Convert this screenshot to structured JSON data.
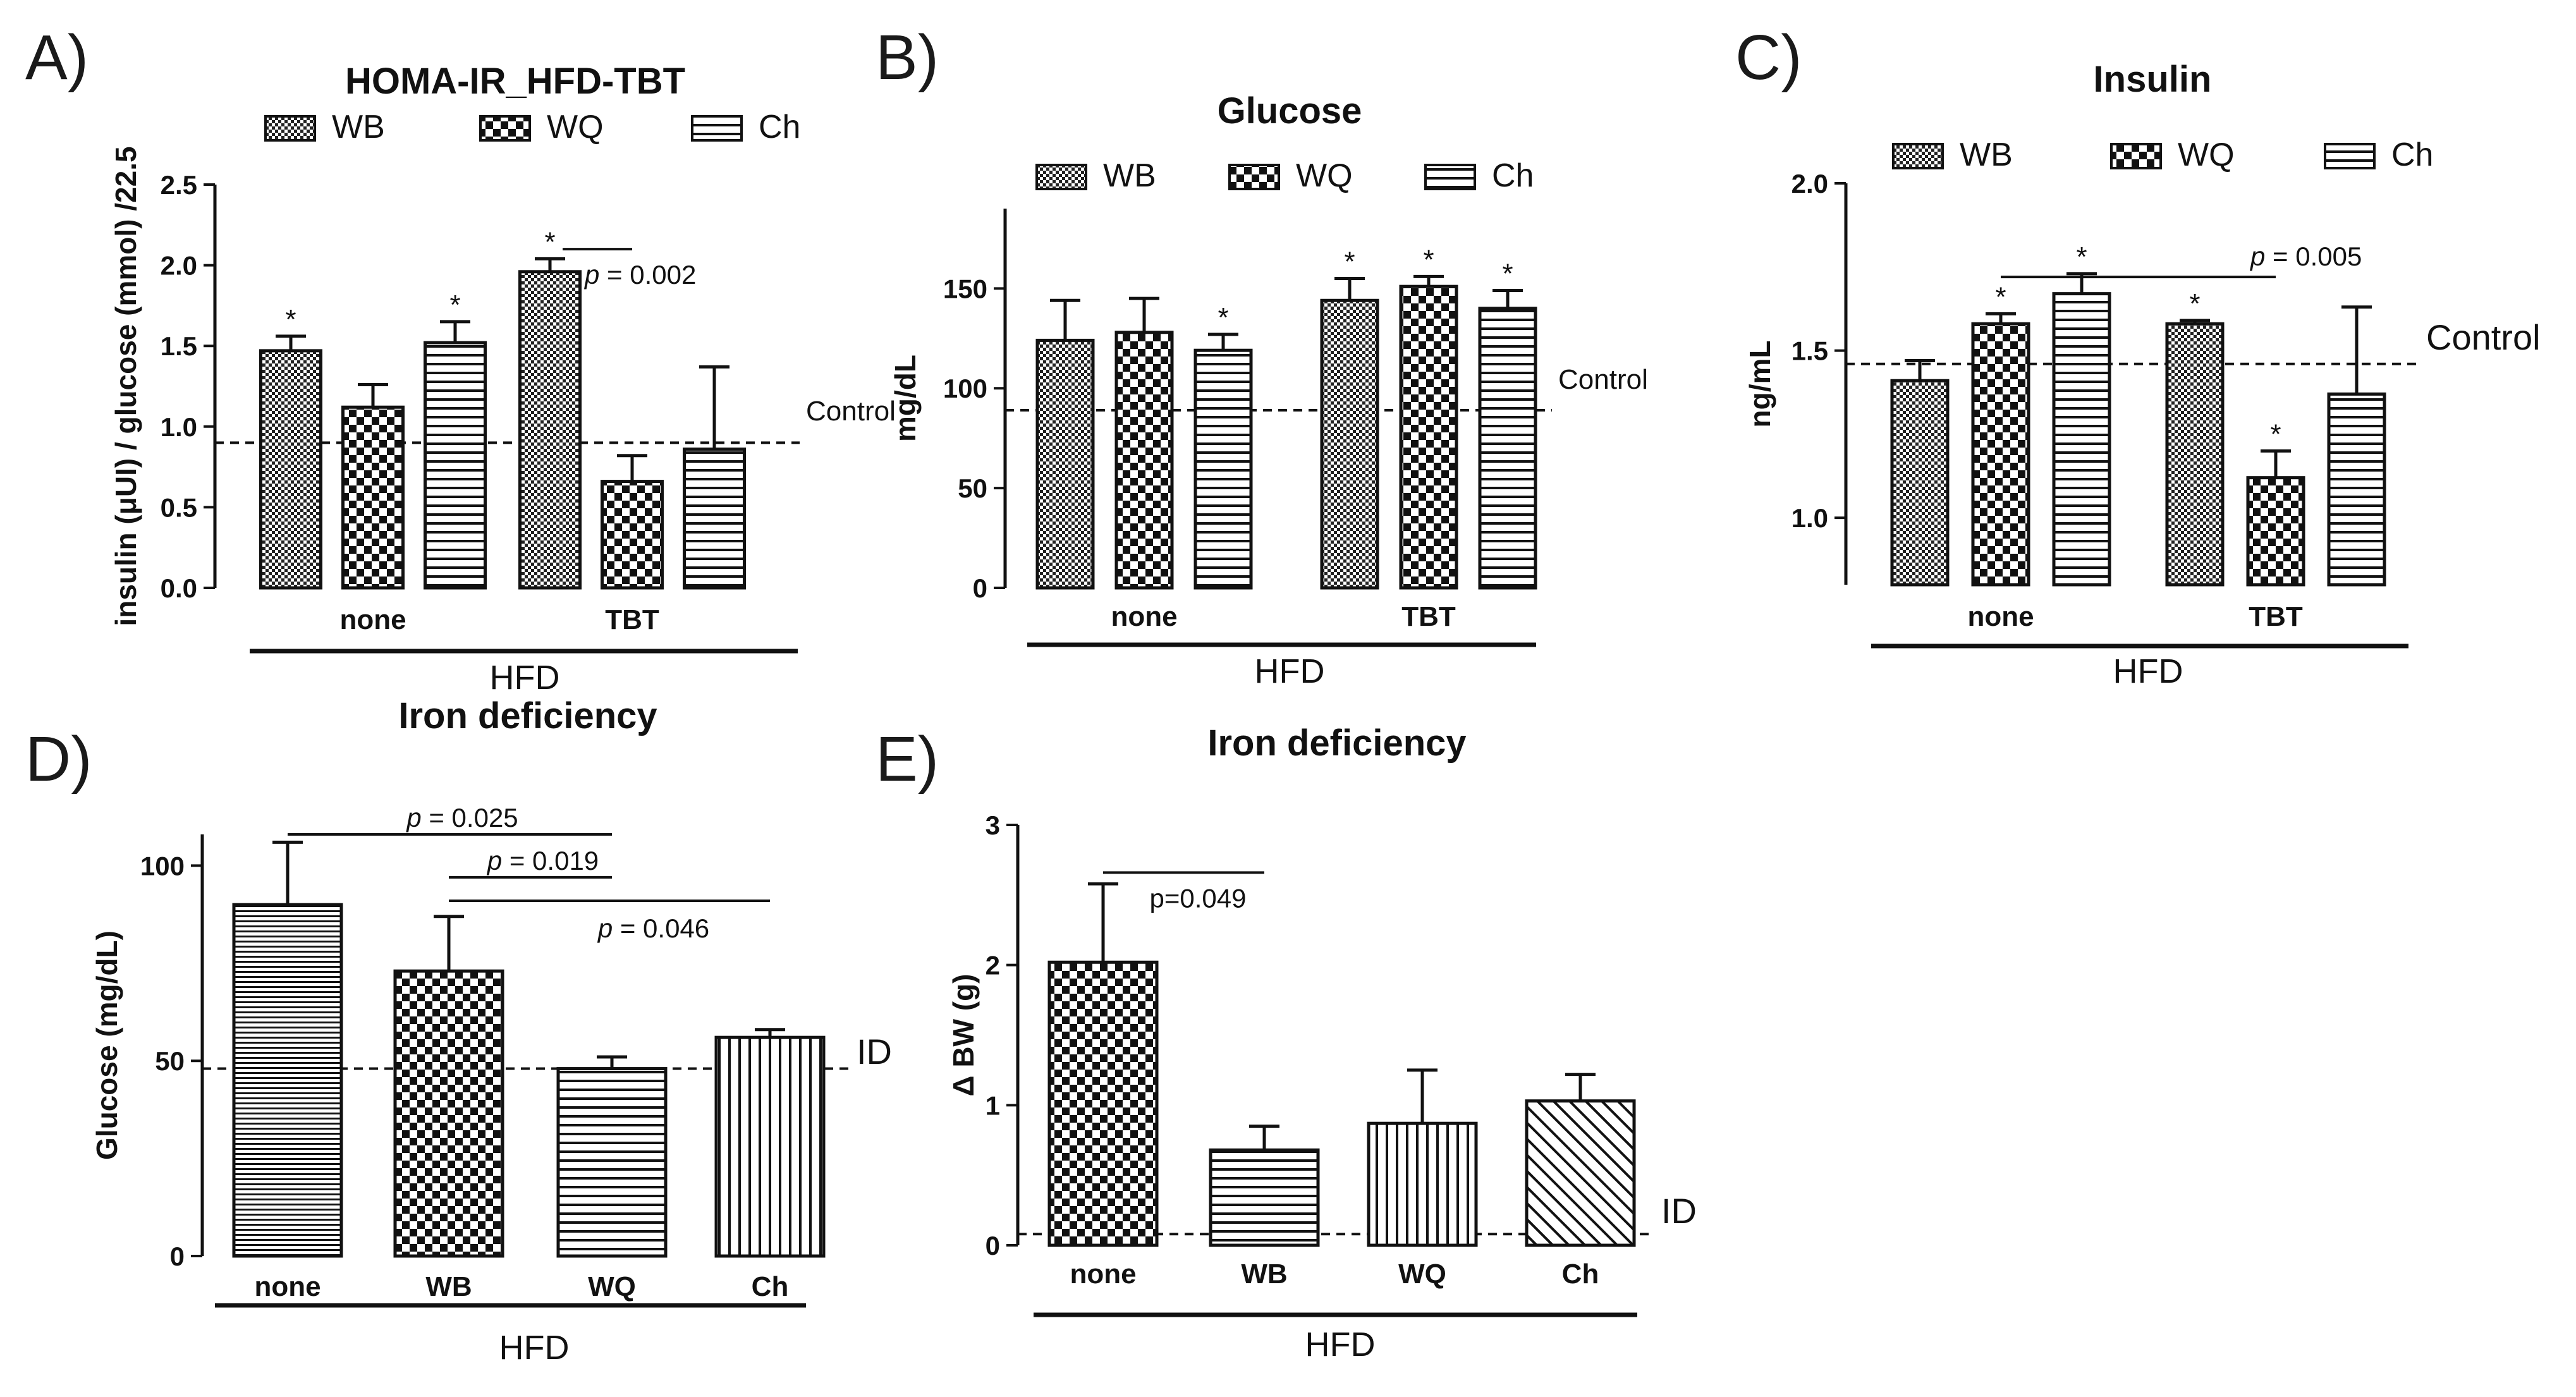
{
  "figure": {
    "panels": [
      "A)",
      "B)",
      "C)",
      "D)",
      "E)"
    ]
  },
  "colors": {
    "ink": "#111111",
    "bar_fill_light": "#ffffff"
  },
  "chart_data": [
    {
      "id": "A",
      "type": "bar",
      "title": "HOMA-IR_HFD-TBT",
      "ylabel": "insulin (μUI) / glucose (mmol) /22.5",
      "xlabel": "HFD",
      "ylim": [
        0,
        2.5
      ],
      "yticks": [
        "0.0",
        "0.5",
        "1.0",
        "1.5",
        "2.0",
        "2.5"
      ],
      "groups": [
        "none",
        "TBT"
      ],
      "series": [
        {
          "name": "WB",
          "pattern": "checker-fine",
          "values": [
            1.47,
            1.96
          ],
          "errors": [
            0.09,
            0.08
          ]
        },
        {
          "name": "WQ",
          "pattern": "checker-coarse",
          "values": [
            1.12,
            0.66
          ],
          "errors": [
            0.14,
            0.16
          ]
        },
        {
          "name": "Ch",
          "pattern": "hlines",
          "values": [
            1.52,
            0.86
          ],
          "errors": [
            0.13,
            0.51
          ]
        }
      ],
      "stars": [
        {
          "group": 0,
          "series": 0
        },
        {
          "group": 0,
          "series": 2
        },
        {
          "group": 1,
          "series": 0
        }
      ],
      "reference": {
        "value": 0.9,
        "label": "Control"
      },
      "annotations": [
        {
          "label_prefix": "p",
          "label_rest": " = 0.002",
          "from": [
            1,
            0
          ],
          "to": [
            1,
            1
          ],
          "y": 2.1
        }
      ]
    },
    {
      "id": "B",
      "type": "bar",
      "title": "Glucose",
      "ylabel": "mg/dL",
      "xlabel": "HFD",
      "ylim": [
        0,
        190
      ],
      "yticks": [
        "0",
        "50",
        "100",
        "150"
      ],
      "ytick_values": [
        0,
        50,
        100,
        150
      ],
      "groups": [
        "none",
        "TBT"
      ],
      "series": [
        {
          "name": "WB",
          "pattern": "checker-fine",
          "values": [
            124,
            144
          ],
          "errors": [
            20,
            11
          ]
        },
        {
          "name": "WQ",
          "pattern": "checker-coarse",
          "values": [
            128,
            151
          ],
          "errors": [
            17,
            5
          ]
        },
        {
          "name": "Ch",
          "pattern": "hlines",
          "values": [
            119,
            140
          ],
          "errors": [
            8,
            9
          ]
        }
      ],
      "stars": [
        {
          "group": 0,
          "series": 2
        },
        {
          "group": 1,
          "series": 0
        },
        {
          "group": 1,
          "series": 1
        },
        {
          "group": 1,
          "series": 2
        }
      ],
      "reference": {
        "value": 89,
        "label": "Control"
      },
      "annotations": []
    },
    {
      "id": "C",
      "type": "bar",
      "title": "Insulin",
      "ylabel": "ng/mL",
      "xlabel": "HFD",
      "ylim": [
        0.8,
        2.0
      ],
      "yticks": [
        "1.0",
        "1.5",
        "2.0"
      ],
      "ytick_values": [
        1.0,
        1.5,
        2.0
      ],
      "groups": [
        "none",
        "TBT"
      ],
      "series": [
        {
          "name": "WB",
          "pattern": "checker-fine",
          "values": [
            1.41,
            1.58
          ],
          "errors": [
            0.06,
            0.01
          ]
        },
        {
          "name": "WQ",
          "pattern": "checker-coarse",
          "values": [
            1.58,
            1.12
          ],
          "errors": [
            0.03,
            0.08
          ]
        },
        {
          "name": "Ch",
          "pattern": "hlines",
          "values": [
            1.67,
            1.37
          ],
          "errors": [
            0.06,
            0.26
          ]
        }
      ],
      "stars": [
        {
          "group": 0,
          "series": 1
        },
        {
          "group": 0,
          "series": 2
        },
        {
          "group": 1,
          "series": 0
        },
        {
          "group": 1,
          "series": 1
        }
      ],
      "reference": {
        "value": 1.46,
        "label": "Control"
      },
      "annotations": [
        {
          "label_prefix": "p",
          "label_rest": " = 0.005",
          "from": [
            0,
            1
          ],
          "to": [
            1,
            1
          ],
          "y": 1.72
        }
      ]
    },
    {
      "id": "D",
      "type": "bar",
      "title": "Iron deficiency",
      "ylabel": "Glucose (mg/dL)",
      "xlabel": "HFD",
      "ylim": [
        0,
        108
      ],
      "yticks": [
        "0",
        "50",
        "100"
      ],
      "ytick_values": [
        0,
        50,
        100
      ],
      "categories": [
        "none",
        "WB",
        "WQ",
        "Ch"
      ],
      "patterns": [
        "hlines-fine",
        "checker-coarse",
        "hlines",
        "vlines"
      ],
      "values": [
        90,
        73,
        48,
        56
      ],
      "errors": [
        16,
        14,
        3,
        2
      ],
      "reference": {
        "value": 48,
        "label": "ID"
      },
      "annotations": [
        {
          "label_prefix": "p",
          "label_rest": " = 0.025",
          "from": 0,
          "to": 2,
          "y": 108
        },
        {
          "label_prefix": "p",
          "label_rest": " = 0.019",
          "from": 1,
          "to": 2,
          "y": 97
        },
        {
          "label_prefix": "p",
          "label_rest": " = 0.046",
          "from": 1,
          "to": 3,
          "y": 91
        }
      ]
    },
    {
      "id": "E",
      "type": "bar",
      "title": "Iron deficiency",
      "ylabel": "Δ BW (g)",
      "xlabel": "HFD",
      "ylim": [
        0,
        3
      ],
      "yticks": [
        "0",
        "1",
        "2",
        "3"
      ],
      "ytick_values": [
        0,
        1,
        2,
        3
      ],
      "categories": [
        "none",
        "WB",
        "WQ",
        "Ch"
      ],
      "patterns": [
        "checker-coarse",
        "hlines",
        "vlines",
        "diag"
      ],
      "values": [
        2.02,
        0.68,
        0.87,
        1.03
      ],
      "errors": [
        0.56,
        0.17,
        0.38,
        0.19
      ],
      "reference": {
        "value": 0.08,
        "label": "ID"
      },
      "annotations": [
        {
          "label_full": "p=0.049",
          "from": 0,
          "to": 1,
          "y": 2.66
        }
      ]
    }
  ]
}
